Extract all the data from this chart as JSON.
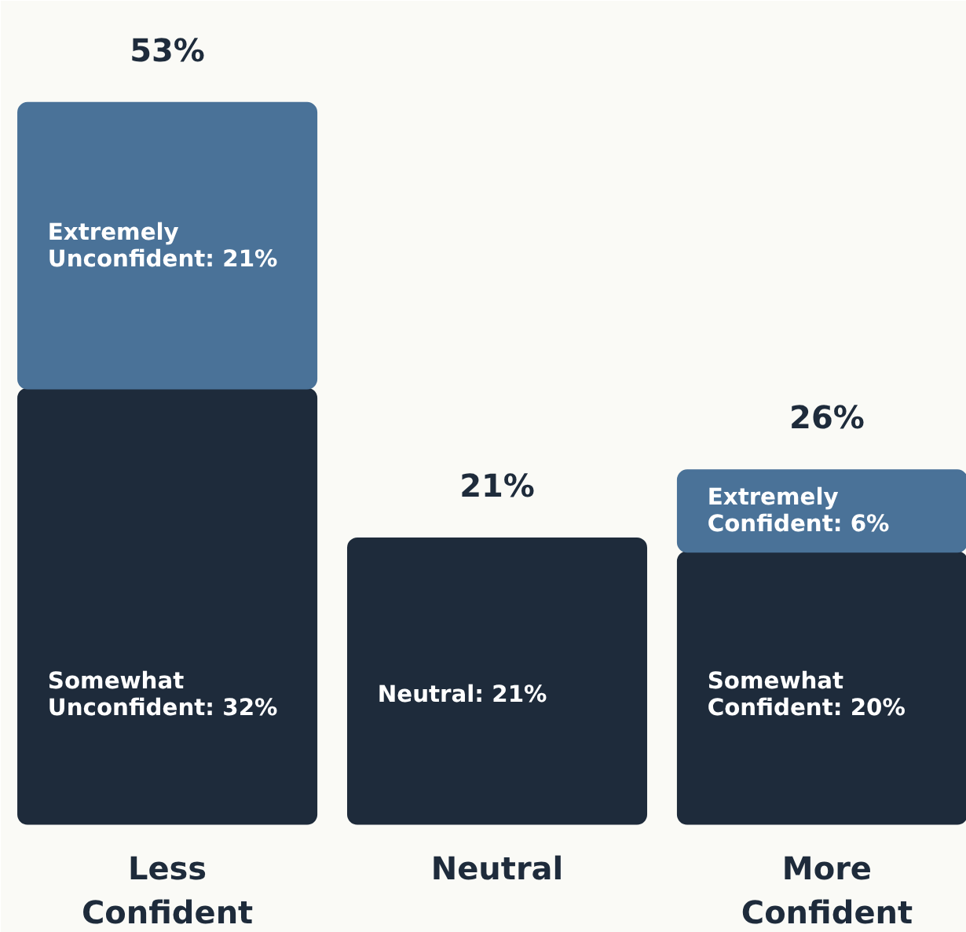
{
  "chart_data": {
    "type": "bar",
    "stacked": true,
    "categories": [
      "Less\nConfident",
      "Neutral",
      "More\nConfident"
    ],
    "series": [
      {
        "color": "#1e2b3b",
        "values": [
          32,
          21,
          20
        ],
        "value_labels": [
          "Somewhat\nUnconfident: 32%",
          "Neutral: 21%",
          "Somewhat\nConfident: 20%"
        ]
      },
      {
        "color": "#4a7298",
        "values": [
          21,
          null,
          6
        ],
        "value_labels": [
          "Extremely\nUnconfident: 21%",
          null,
          "Extremely\nConfident: 6%"
        ]
      }
    ],
    "totals": [
      "53%",
      "21%",
      "26%"
    ]
  }
}
